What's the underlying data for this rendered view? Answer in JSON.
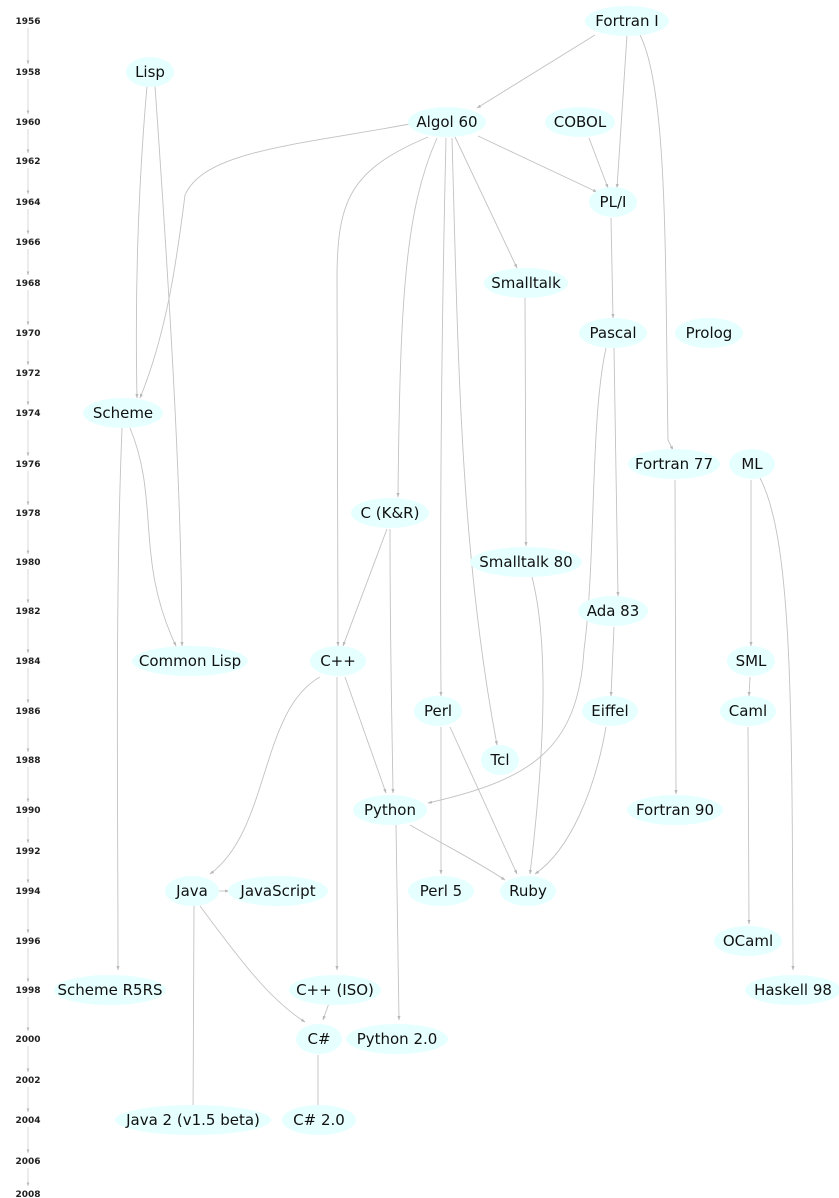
{
  "colors": {
    "node_fill": "#e6ffff",
    "edge": "#c2c2c2",
    "arrowhead": "#b8b8b8",
    "text": "#111111"
  },
  "years": [
    "1956",
    "1958",
    "1960",
    "1962",
    "1964",
    "1966",
    "1968",
    "1970",
    "1972",
    "1974",
    "1976",
    "1978",
    "1980",
    "1982",
    "1984",
    "1986",
    "1988",
    "1990",
    "1992",
    "1994",
    "1996",
    "1998",
    "2000",
    "2002",
    "2004",
    "2006",
    "2008"
  ],
  "languages": {
    "fortran_i": "Fortran I",
    "lisp": "Lisp",
    "algol_60": "Algol 60",
    "cobol": "COBOL",
    "pl_i": "PL/I",
    "smalltalk": "Smalltalk",
    "pascal": "Pascal",
    "prolog": "Prolog",
    "scheme": "Scheme",
    "fortran_77": "Fortran 77",
    "ml": "ML",
    "c_kr": "C (K&R)",
    "smalltalk_80": "Smalltalk 80",
    "ada_83": "Ada 83",
    "common_lisp": "Common Lisp",
    "cpp": "C++",
    "sml": "SML",
    "perl": "Perl",
    "eiffel": "Eiffel",
    "caml": "Caml",
    "tcl": "Tcl",
    "python": "Python",
    "fortran_90": "Fortran 90",
    "java": "Java",
    "javascript": "JavaScript",
    "perl_5": "Perl 5",
    "ruby": "Ruby",
    "ocaml": "OCaml",
    "scheme_r5rs": "Scheme R5RS",
    "cpp_iso": "C++ (ISO)",
    "haskell_98": "Haskell 98",
    "csharp": "C#",
    "python_2": "Python 2.0",
    "java_2": "Java 2 (v1.5 beta)",
    "csharp_2": "C# 2.0"
  }
}
